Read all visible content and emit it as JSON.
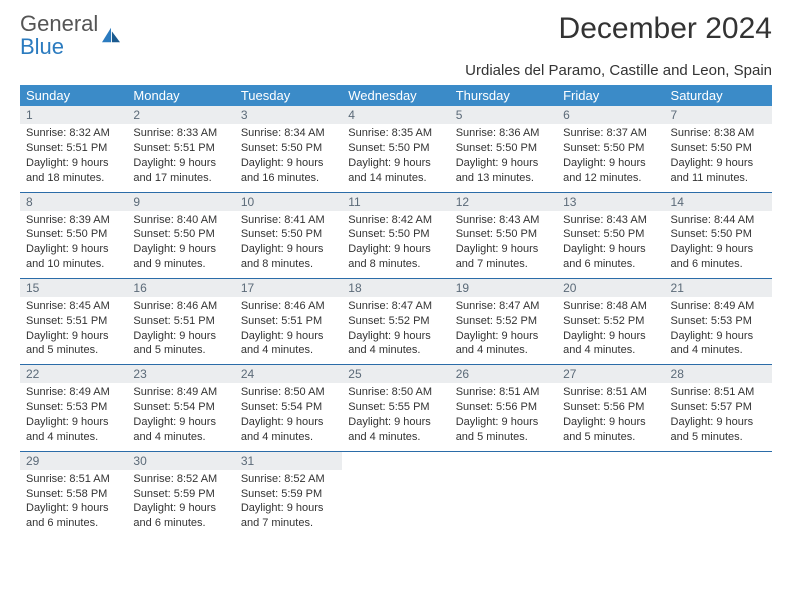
{
  "brand": {
    "name_top": "General",
    "name_bottom": "Blue"
  },
  "title": "December 2024",
  "location": "Urdiales del Paramo, Castille and Leon, Spain",
  "colors": {
    "header_bg": "#3b8bc8",
    "header_text": "#ffffff",
    "daynum_bg": "#ebedef",
    "daynum_text": "#5b6a78",
    "row_border": "#2b6ca8",
    "brand_gray": "#555555",
    "brand_blue": "#2b7bbf",
    "body_text": "#333333",
    "page_bg": "#ffffff"
  },
  "typography": {
    "title_fontsize": 30,
    "location_fontsize": 15,
    "dayheader_fontsize": 13,
    "daynum_fontsize": 12,
    "cell_fontsize": 11
  },
  "day_headers": [
    "Sunday",
    "Monday",
    "Tuesday",
    "Wednesday",
    "Thursday",
    "Friday",
    "Saturday"
  ],
  "days": [
    {
      "n": 1,
      "sunrise": "8:32 AM",
      "sunset": "5:51 PM",
      "daylight": "9 hours and 18 minutes."
    },
    {
      "n": 2,
      "sunrise": "8:33 AM",
      "sunset": "5:51 PM",
      "daylight": "9 hours and 17 minutes."
    },
    {
      "n": 3,
      "sunrise": "8:34 AM",
      "sunset": "5:50 PM",
      "daylight": "9 hours and 16 minutes."
    },
    {
      "n": 4,
      "sunrise": "8:35 AM",
      "sunset": "5:50 PM",
      "daylight": "9 hours and 14 minutes."
    },
    {
      "n": 5,
      "sunrise": "8:36 AM",
      "sunset": "5:50 PM",
      "daylight": "9 hours and 13 minutes."
    },
    {
      "n": 6,
      "sunrise": "8:37 AM",
      "sunset": "5:50 PM",
      "daylight": "9 hours and 12 minutes."
    },
    {
      "n": 7,
      "sunrise": "8:38 AM",
      "sunset": "5:50 PM",
      "daylight": "9 hours and 11 minutes."
    },
    {
      "n": 8,
      "sunrise": "8:39 AM",
      "sunset": "5:50 PM",
      "daylight": "9 hours and 10 minutes."
    },
    {
      "n": 9,
      "sunrise": "8:40 AM",
      "sunset": "5:50 PM",
      "daylight": "9 hours and 9 minutes."
    },
    {
      "n": 10,
      "sunrise": "8:41 AM",
      "sunset": "5:50 PM",
      "daylight": "9 hours and 8 minutes."
    },
    {
      "n": 11,
      "sunrise": "8:42 AM",
      "sunset": "5:50 PM",
      "daylight": "9 hours and 8 minutes."
    },
    {
      "n": 12,
      "sunrise": "8:43 AM",
      "sunset": "5:50 PM",
      "daylight": "9 hours and 7 minutes."
    },
    {
      "n": 13,
      "sunrise": "8:43 AM",
      "sunset": "5:50 PM",
      "daylight": "9 hours and 6 minutes."
    },
    {
      "n": 14,
      "sunrise": "8:44 AM",
      "sunset": "5:50 PM",
      "daylight": "9 hours and 6 minutes."
    },
    {
      "n": 15,
      "sunrise": "8:45 AM",
      "sunset": "5:51 PM",
      "daylight": "9 hours and 5 minutes."
    },
    {
      "n": 16,
      "sunrise": "8:46 AM",
      "sunset": "5:51 PM",
      "daylight": "9 hours and 5 minutes."
    },
    {
      "n": 17,
      "sunrise": "8:46 AM",
      "sunset": "5:51 PM",
      "daylight": "9 hours and 4 minutes."
    },
    {
      "n": 18,
      "sunrise": "8:47 AM",
      "sunset": "5:52 PM",
      "daylight": "9 hours and 4 minutes."
    },
    {
      "n": 19,
      "sunrise": "8:47 AM",
      "sunset": "5:52 PM",
      "daylight": "9 hours and 4 minutes."
    },
    {
      "n": 20,
      "sunrise": "8:48 AM",
      "sunset": "5:52 PM",
      "daylight": "9 hours and 4 minutes."
    },
    {
      "n": 21,
      "sunrise": "8:49 AM",
      "sunset": "5:53 PM",
      "daylight": "9 hours and 4 minutes."
    },
    {
      "n": 22,
      "sunrise": "8:49 AM",
      "sunset": "5:53 PM",
      "daylight": "9 hours and 4 minutes."
    },
    {
      "n": 23,
      "sunrise": "8:49 AM",
      "sunset": "5:54 PM",
      "daylight": "9 hours and 4 minutes."
    },
    {
      "n": 24,
      "sunrise": "8:50 AM",
      "sunset": "5:54 PM",
      "daylight": "9 hours and 4 minutes."
    },
    {
      "n": 25,
      "sunrise": "8:50 AM",
      "sunset": "5:55 PM",
      "daylight": "9 hours and 4 minutes."
    },
    {
      "n": 26,
      "sunrise": "8:51 AM",
      "sunset": "5:56 PM",
      "daylight": "9 hours and 5 minutes."
    },
    {
      "n": 27,
      "sunrise": "8:51 AM",
      "sunset": "5:56 PM",
      "daylight": "9 hours and 5 minutes."
    },
    {
      "n": 28,
      "sunrise": "8:51 AM",
      "sunset": "5:57 PM",
      "daylight": "9 hours and 5 minutes."
    },
    {
      "n": 29,
      "sunrise": "8:51 AM",
      "sunset": "5:58 PM",
      "daylight": "9 hours and 6 minutes."
    },
    {
      "n": 30,
      "sunrise": "8:52 AM",
      "sunset": "5:59 PM",
      "daylight": "9 hours and 6 minutes."
    },
    {
      "n": 31,
      "sunrise": "8:52 AM",
      "sunset": "5:59 PM",
      "daylight": "9 hours and 7 minutes."
    }
  ],
  "labels": {
    "sunrise": "Sunrise:",
    "sunset": "Sunset:",
    "daylight": "Daylight:"
  }
}
